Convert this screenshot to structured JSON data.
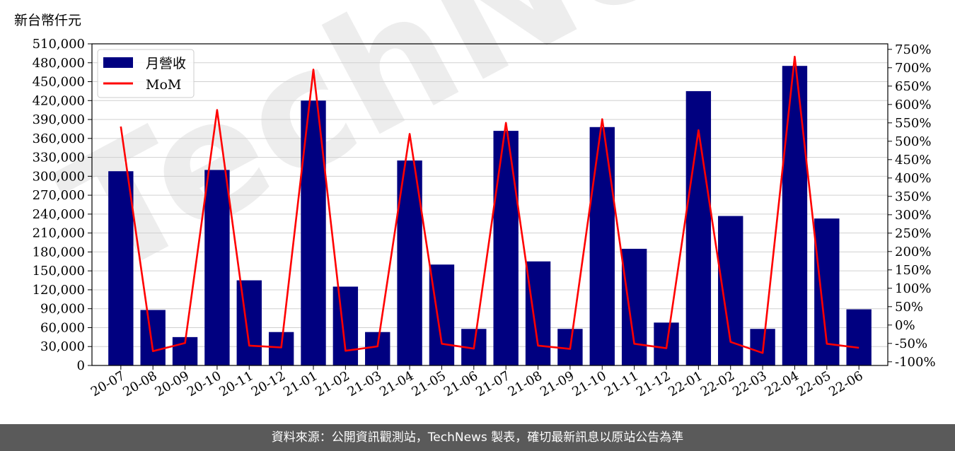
{
  "unit_label": "新台幣仟元",
  "footer_text": "資料來源：公開資訊觀測站，TechNews 製表，確切最新訊息以原站公告為準",
  "watermark_text": "TechNews",
  "colors": {
    "bar": "#000080",
    "line": "#ff0000",
    "grid": "#d0d0d0",
    "axis": "#000000",
    "footer_bg": "#5a5a5a",
    "watermark": "#e0e0e0"
  },
  "chart_data": {
    "type": "bar",
    "categories": [
      "20-07",
      "20-08",
      "20-09",
      "20-10",
      "20-11",
      "20-12",
      "21-01",
      "21-02",
      "21-03",
      "21-04",
      "21-05",
      "21-06",
      "21-07",
      "21-08",
      "21-09",
      "21-10",
      "21-11",
      "21-12",
      "22-01",
      "22-02",
      "22-03",
      "22-04",
      "22-05",
      "22-06"
    ],
    "series": [
      {
        "name": "月營收",
        "type": "bar",
        "axis": "left",
        "values": [
          308000,
          88000,
          45000,
          310000,
          135000,
          53000,
          420000,
          125000,
          53000,
          325000,
          160000,
          58000,
          372000,
          165000,
          58000,
          378000,
          185000,
          68000,
          435000,
          237000,
          58000,
          475000,
          233000,
          89000
        ]
      },
      {
        "name": "MoM",
        "type": "line",
        "axis": "right",
        "values": [
          540,
          -71,
          -49,
          585,
          -56,
          -61,
          695,
          -70,
          -58,
          520,
          -51,
          -64,
          550,
          -56,
          -65,
          560,
          -51,
          -63,
          530,
          -46,
          -76,
          730,
          -51,
          -62
        ]
      }
    ],
    "left_axis": {
      "ylim": [
        0,
        510000
      ],
      "ticks": [
        0,
        30000,
        60000,
        90000,
        120000,
        150000,
        180000,
        210000,
        240000,
        270000,
        300000,
        330000,
        360000,
        390000,
        420000,
        450000,
        480000,
        510000
      ],
      "tick_labels": [
        "0",
        "30,000",
        "60,000",
        "90,000",
        "120,000",
        "150,000",
        "180,000",
        "210,000",
        "240,000",
        "270,000",
        "300,000",
        "330,000",
        "360,000",
        "390,000",
        "420,000",
        "450,000",
        "480,000",
        "510,000"
      ]
    },
    "right_axis": {
      "ylim": [
        -110,
        765
      ],
      "ticks": [
        -100,
        -50,
        0,
        50,
        100,
        150,
        200,
        250,
        300,
        350,
        400,
        450,
        500,
        550,
        600,
        650,
        700,
        750
      ],
      "tick_labels": [
        "-100%",
        "-50%",
        "0%",
        "50%",
        "100%",
        "150%",
        "200%",
        "250%",
        "300%",
        "350%",
        "400%",
        "450%",
        "500%",
        "550%",
        "600%",
        "650%",
        "700%",
        "750%"
      ]
    },
    "grid": true,
    "legend_position": "top-left"
  }
}
